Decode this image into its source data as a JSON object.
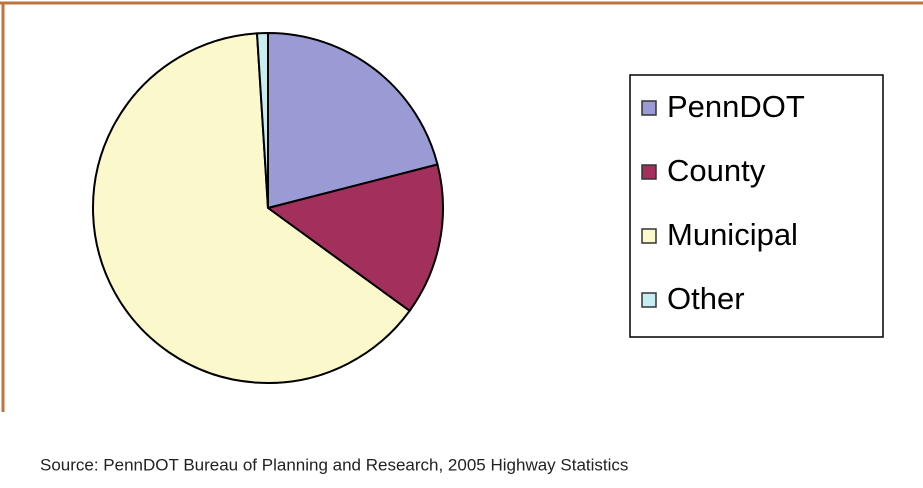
{
  "chart_data": {
    "type": "pie",
    "categories": [
      "PennDOT",
      "County",
      "Municipal",
      "Other"
    ],
    "values": [
      21,
      14,
      64,
      1
    ],
    "colors": [
      "#9a9ad4",
      "#a3305c",
      "#fbf8cc",
      "#c6eef2"
    ],
    "legend": "right",
    "source": "Source:  PennDOT Bureau of Planning and Research, 2005 Highway Statistics"
  }
}
